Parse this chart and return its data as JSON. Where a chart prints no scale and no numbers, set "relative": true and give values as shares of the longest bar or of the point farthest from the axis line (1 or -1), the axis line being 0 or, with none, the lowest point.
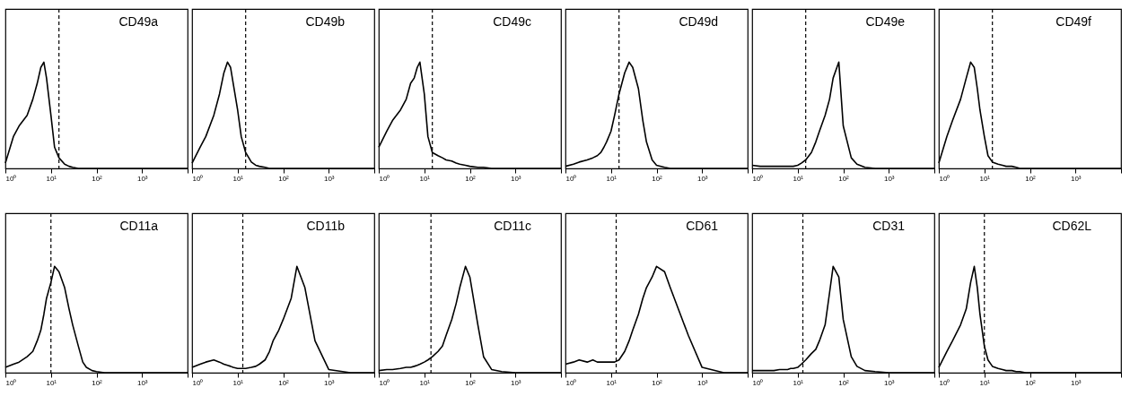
{
  "chart_data": [
    {
      "type": "line",
      "title": "CD49a",
      "relative": true,
      "log": "x",
      "tick_labels": "x",
      "color": "#000000",
      "xlim": [
        1,
        10000
      ],
      "xticks": [
        {
          "value": 1,
          "label": "10⁰"
        },
        {
          "value": 10,
          "label": "10¹"
        },
        {
          "value": 100,
          "label": "10²"
        },
        {
          "value": 1000,
          "label": "10³"
        },
        {
          "value": 10000,
          "label": null
        }
      ],
      "ref_lines": [
        {
          "axis": "x",
          "value": 15,
          "line_style": "dashed"
        }
      ],
      "x": [
        1,
        1.5,
        2,
        3,
        4,
        5,
        6,
        7,
        8,
        10,
        12,
        15,
        20,
        25,
        30,
        40,
        50,
        60,
        80,
        100,
        150,
        200,
        300,
        500,
        1000,
        3000,
        10000
      ],
      "values": [
        0.05,
        0.3,
        0.4,
        0.5,
        0.65,
        0.8,
        0.95,
        1,
        0.85,
        0.5,
        0.2,
        0.1,
        0.04,
        0.02,
        0.01,
        0,
        0,
        0,
        0,
        0,
        0,
        0,
        0,
        0,
        0,
        0,
        0
      ]
    },
    {
      "type": "line",
      "title": "CD49b",
      "relative": true,
      "log": "x",
      "tick_labels": "x",
      "color": "#000000",
      "xlim": [
        1,
        10000
      ],
      "xticks": [
        {
          "value": 1,
          "label": "10⁰"
        },
        {
          "value": 10,
          "label": "10¹"
        },
        {
          "value": 100,
          "label": "10²"
        },
        {
          "value": 1000,
          "label": "10³"
        },
        {
          "value": 10000,
          "label": null
        }
      ],
      "ref_lines": [
        {
          "axis": "x",
          "value": 15,
          "line_style": "dashed"
        }
      ],
      "x": [
        1,
        1.5,
        2,
        3,
        4,
        5,
        6,
        7,
        8,
        10,
        12,
        15,
        20,
        25,
        30,
        40,
        50,
        60,
        80,
        100,
        150,
        200,
        300,
        500,
        1000,
        3000,
        10000
      ],
      "values": [
        0.05,
        0.2,
        0.3,
        0.5,
        0.7,
        0.9,
        1,
        0.95,
        0.8,
        0.55,
        0.3,
        0.15,
        0.06,
        0.03,
        0.02,
        0.01,
        0,
        0,
        0,
        0,
        0,
        0,
        0,
        0,
        0,
        0,
        0
      ]
    },
    {
      "type": "line",
      "title": "CD49c",
      "relative": true,
      "log": "x",
      "tick_labels": "x",
      "color": "#000000",
      "xlim": [
        1,
        10000
      ],
      "xticks": [
        {
          "value": 1,
          "label": "10⁰"
        },
        {
          "value": 10,
          "label": "10¹"
        },
        {
          "value": 100,
          "label": "10²"
        },
        {
          "value": 1000,
          "label": "10³"
        },
        {
          "value": 10000,
          "label": null
        }
      ],
      "ref_lines": [
        {
          "axis": "x",
          "value": 15,
          "line_style": "dashed"
        }
      ],
      "x": [
        1,
        1.5,
        2,
        3,
        4,
        5,
        6,
        7,
        8,
        10,
        12,
        15,
        20,
        25,
        30,
        40,
        50,
        60,
        80,
        100,
        150,
        200,
        300,
        500,
        1000,
        3000,
        10000
      ],
      "values": [
        0.2,
        0.35,
        0.45,
        0.55,
        0.65,
        0.8,
        0.85,
        0.95,
        1,
        0.7,
        0.3,
        0.15,
        0.12,
        0.1,
        0.08,
        0.07,
        0.05,
        0.04,
        0.03,
        0.02,
        0.01,
        0.01,
        0,
        0,
        0,
        0,
        0
      ]
    },
    {
      "type": "line",
      "title": "CD49d",
      "relative": true,
      "log": "x",
      "tick_labels": "x",
      "color": "#000000",
      "xlim": [
        1,
        10000
      ],
      "xticks": [
        {
          "value": 1,
          "label": "10⁰"
        },
        {
          "value": 10,
          "label": "10¹"
        },
        {
          "value": 100,
          "label": "10²"
        },
        {
          "value": 1000,
          "label": "10³"
        },
        {
          "value": 10000,
          "label": null
        }
      ],
      "ref_lines": [
        {
          "axis": "x",
          "value": 15,
          "line_style": "dashed"
        }
      ],
      "x": [
        1,
        1.5,
        2,
        3,
        4,
        5,
        6,
        7,
        8,
        10,
        12,
        15,
        20,
        25,
        30,
        40,
        50,
        60,
        80,
        100,
        150,
        200,
        300,
        500,
        1000,
        3000,
        10000
      ],
      "values": [
        0.02,
        0.04,
        0.06,
        0.08,
        0.1,
        0.12,
        0.15,
        0.2,
        0.25,
        0.35,
        0.5,
        0.7,
        0.9,
        1,
        0.95,
        0.75,
        0.45,
        0.25,
        0.08,
        0.03,
        0.01,
        0,
        0,
        0,
        0,
        0,
        0
      ]
    },
    {
      "type": "line",
      "title": "CD49e",
      "relative": true,
      "log": "x",
      "tick_labels": "x",
      "color": "#000000",
      "xlim": [
        1,
        10000
      ],
      "xticks": [
        {
          "value": 1,
          "label": "10⁰"
        },
        {
          "value": 10,
          "label": "10¹"
        },
        {
          "value": 100,
          "label": "10²"
        },
        {
          "value": 1000,
          "label": "10³"
        },
        {
          "value": 10000,
          "label": null
        }
      ],
      "ref_lines": [
        {
          "axis": "x",
          "value": 15,
          "line_style": "dashed"
        }
      ],
      "x": [
        1,
        1.5,
        2,
        3,
        4,
        5,
        6,
        7,
        8,
        10,
        12,
        15,
        20,
        25,
        30,
        40,
        50,
        60,
        80,
        100,
        150,
        200,
        300,
        500,
        1000,
        3000,
        10000
      ],
      "values": [
        0.03,
        0.02,
        0.02,
        0.02,
        0.02,
        0.02,
        0.02,
        0.02,
        0.02,
        0.03,
        0.05,
        0.08,
        0.15,
        0.25,
        0.35,
        0.5,
        0.65,
        0.85,
        1,
        0.4,
        0.1,
        0.04,
        0.01,
        0,
        0,
        0,
        0
      ]
    },
    {
      "type": "line",
      "title": "CD49f",
      "relative": true,
      "log": "x",
      "tick_labels": "x",
      "color": "#000000",
      "xlim": [
        1,
        10000
      ],
      "xticks": [
        {
          "value": 1,
          "label": "10⁰"
        },
        {
          "value": 10,
          "label": "10¹"
        },
        {
          "value": 100,
          "label": "10²"
        },
        {
          "value": 1000,
          "label": "10³"
        },
        {
          "value": 10000,
          "label": null
        }
      ],
      "ref_lines": [
        {
          "axis": "x",
          "value": 15,
          "line_style": "dashed"
        }
      ],
      "x": [
        1,
        1.5,
        2,
        3,
        4,
        5,
        6,
        7,
        8,
        10,
        12,
        15,
        20,
        25,
        30,
        40,
        50,
        60,
        80,
        100,
        150,
        200,
        300,
        500,
        1000,
        3000,
        10000
      ],
      "values": [
        0.05,
        0.3,
        0.45,
        0.65,
        0.85,
        1,
        0.95,
        0.75,
        0.55,
        0.3,
        0.12,
        0.06,
        0.04,
        0.03,
        0.02,
        0.02,
        0.01,
        0,
        0,
        0,
        0,
        0,
        0,
        0,
        0,
        0,
        0
      ]
    },
    {
      "type": "line",
      "title": "CD11a",
      "relative": true,
      "log": "x",
      "tick_labels": "x",
      "color": "#000000",
      "xlim": [
        1,
        10000
      ],
      "xticks": [
        {
          "value": 1,
          "label": "10⁰"
        },
        {
          "value": 10,
          "label": "10¹"
        },
        {
          "value": 100,
          "label": "10²"
        },
        {
          "value": 1000,
          "label": "10³"
        },
        {
          "value": 10000,
          "label": null
        }
      ],
      "ref_lines": [
        {
          "axis": "x",
          "value": 10,
          "line_style": "dashed"
        }
      ],
      "x": [
        1,
        1.5,
        2,
        3,
        4,
        5,
        6,
        7,
        8,
        10,
        12,
        15,
        20,
        25,
        30,
        40,
        50,
        60,
        80,
        100,
        150,
        200,
        300,
        500,
        1000,
        3000,
        10000
      ],
      "values": [
        0.05,
        0.08,
        0.1,
        0.15,
        0.2,
        0.3,
        0.4,
        0.55,
        0.7,
        0.85,
        1,
        0.95,
        0.8,
        0.6,
        0.45,
        0.25,
        0.1,
        0.05,
        0.02,
        0.01,
        0,
        0,
        0,
        0,
        0,
        0,
        0
      ]
    },
    {
      "type": "line",
      "title": "CD11b",
      "relative": true,
      "log": "x",
      "tick_labels": "x",
      "color": "#000000",
      "xlim": [
        1,
        10000
      ],
      "xticks": [
        {
          "value": 1,
          "label": "10⁰"
        },
        {
          "value": 10,
          "label": "10¹"
        },
        {
          "value": 100,
          "label": "10²"
        },
        {
          "value": 1000,
          "label": "10³"
        },
        {
          "value": 10000,
          "label": null
        }
      ],
      "ref_lines": [
        {
          "axis": "x",
          "value": 13,
          "line_style": "dashed"
        }
      ],
      "x": [
        1,
        1.5,
        2,
        3,
        4,
        5,
        6,
        7,
        8,
        10,
        12,
        15,
        20,
        25,
        30,
        40,
        50,
        60,
        80,
        100,
        150,
        200,
        300,
        500,
        1000,
        3000,
        10000
      ],
      "values": [
        0.05,
        0.08,
        0.1,
        0.12,
        0.1,
        0.08,
        0.07,
        0.06,
        0.05,
        0.04,
        0.04,
        0.04,
        0.05,
        0.06,
        0.08,
        0.12,
        0.2,
        0.3,
        0.4,
        0.5,
        0.7,
        1,
        0.8,
        0.3,
        0.03,
        0,
        0
      ]
    },
    {
      "type": "line",
      "title": "CD11c",
      "relative": true,
      "log": "x",
      "tick_labels": "x",
      "color": "#000000",
      "xlim": [
        1,
        10000
      ],
      "xticks": [
        {
          "value": 1,
          "label": "10⁰"
        },
        {
          "value": 10,
          "label": "10¹"
        },
        {
          "value": 100,
          "label": "10²"
        },
        {
          "value": 1000,
          "label": "10³"
        },
        {
          "value": 10000,
          "label": null
        }
      ],
      "ref_lines": [
        {
          "axis": "x",
          "value": 14,
          "line_style": "dashed"
        }
      ],
      "x": [
        1,
        1.5,
        2,
        3,
        4,
        5,
        6,
        7,
        8,
        10,
        12,
        15,
        20,
        25,
        30,
        40,
        50,
        60,
        80,
        100,
        150,
        200,
        300,
        500,
        1000,
        3000,
        10000
      ],
      "values": [
        0.02,
        0.03,
        0.03,
        0.04,
        0.05,
        0.05,
        0.06,
        0.07,
        0.08,
        0.1,
        0.12,
        0.15,
        0.2,
        0.25,
        0.35,
        0.5,
        0.65,
        0.8,
        1,
        0.9,
        0.45,
        0.15,
        0.03,
        0.01,
        0,
        0,
        0
      ]
    },
    {
      "type": "line",
      "title": "CD61",
      "relative": true,
      "log": "x",
      "tick_labels": "x",
      "color": "#000000",
      "xlim": [
        1,
        10000
      ],
      "xticks": [
        {
          "value": 1,
          "label": "10⁰"
        },
        {
          "value": 10,
          "label": "10¹"
        },
        {
          "value": 100,
          "label": "10²"
        },
        {
          "value": 1000,
          "label": "10³"
        },
        {
          "value": 10000,
          "label": null
        }
      ],
      "ref_lines": [
        {
          "axis": "x",
          "value": 13,
          "line_style": "dashed"
        }
      ],
      "x": [
        1,
        1.5,
        2,
        3,
        4,
        5,
        6,
        7,
        8,
        10,
        12,
        15,
        20,
        25,
        30,
        40,
        50,
        60,
        80,
        100,
        150,
        200,
        300,
        500,
        1000,
        3000,
        10000
      ],
      "values": [
        0.08,
        0.1,
        0.12,
        0.1,
        0.12,
        0.1,
        0.1,
        0.1,
        0.1,
        0.1,
        0.1,
        0.12,
        0.2,
        0.3,
        0.4,
        0.55,
        0.7,
        0.8,
        0.9,
        1,
        0.95,
        0.8,
        0.6,
        0.35,
        0.05,
        0,
        0
      ]
    },
    {
      "type": "line",
      "title": "CD31",
      "relative": true,
      "log": "x",
      "tick_labels": "x",
      "color": "#000000",
      "xlim": [
        1,
        10000
      ],
      "xticks": [
        {
          "value": 1,
          "label": "10⁰"
        },
        {
          "value": 10,
          "label": "10¹"
        },
        {
          "value": 100,
          "label": "10²"
        },
        {
          "value": 1000,
          "label": "10³"
        },
        {
          "value": 10000,
          "label": null
        }
      ],
      "ref_lines": [
        {
          "axis": "x",
          "value": 13,
          "line_style": "dashed"
        }
      ],
      "x": [
        1,
        1.5,
        2,
        3,
        4,
        5,
        6,
        7,
        8,
        10,
        12,
        15,
        20,
        25,
        30,
        40,
        50,
        60,
        80,
        100,
        150,
        200,
        300,
        500,
        1000,
        3000,
        10000
      ],
      "values": [
        0.02,
        0.02,
        0.02,
        0.02,
        0.03,
        0.03,
        0.03,
        0.04,
        0.04,
        0.05,
        0.08,
        0.12,
        0.18,
        0.22,
        0.3,
        0.45,
        0.75,
        1,
        0.9,
        0.5,
        0.15,
        0.06,
        0.02,
        0.01,
        0,
        0,
        0
      ]
    },
    {
      "type": "line",
      "title": "CD62L",
      "relative": true,
      "log": "x",
      "tick_labels": "x",
      "color": "#000000",
      "xlim": [
        1,
        10000
      ],
      "xticks": [
        {
          "value": 1,
          "label": "10⁰"
        },
        {
          "value": 10,
          "label": "10¹"
        },
        {
          "value": 100,
          "label": "10²"
        },
        {
          "value": 1000,
          "label": "10³"
        },
        {
          "value": 10000,
          "label": null
        }
      ],
      "ref_lines": [
        {
          "axis": "x",
          "value": 10,
          "line_style": "dashed"
        }
      ],
      "x": [
        1,
        1.5,
        2,
        3,
        4,
        5,
        6,
        7,
        8,
        10,
        12,
        15,
        20,
        25,
        30,
        40,
        50,
        60,
        80,
        100,
        150,
        200,
        300,
        500,
        1000,
        3000,
        10000
      ],
      "values": [
        0.05,
        0.2,
        0.3,
        0.45,
        0.6,
        0.85,
        1,
        0.8,
        0.55,
        0.25,
        0.12,
        0.06,
        0.04,
        0.03,
        0.02,
        0.02,
        0.01,
        0.01,
        0,
        0,
        0,
        0,
        0,
        0,
        0,
        0,
        0
      ]
    }
  ]
}
